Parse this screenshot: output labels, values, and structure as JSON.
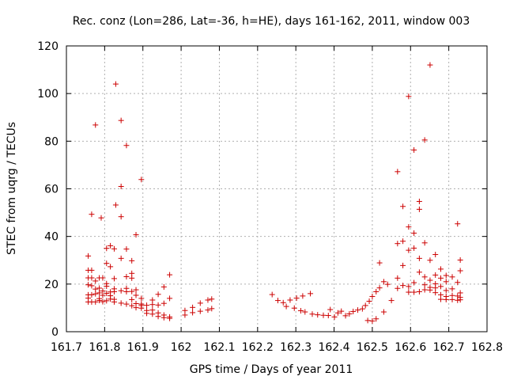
{
  "chart_data": {
    "type": "scatter",
    "title": "Rec. conz (Lon=286, Lat=-36, h=HE), days 161-162, 2011, window 003",
    "xlabel": "GPS time / Days of year 2011",
    "ylabel": "STEC from uqrg / TECUs",
    "xlim": [
      161.7,
      162.8
    ],
    "ylim": [
      0,
      120
    ],
    "x_ticks": [
      "161.7",
      "161.8",
      "161.9",
      "162",
      "162.1",
      "162.2",
      "162.3",
      "162.4",
      "162.5",
      "162.6",
      "162.7",
      "162.8"
    ],
    "y_ticks": [
      "0",
      "20",
      "40",
      "60",
      "80",
      "100",
      "120"
    ],
    "grid": true,
    "marker": "+",
    "color": "#cc0000",
    "points": [
      [
        161.757,
        31.8
      ],
      [
        161.757,
        25.8
      ],
      [
        161.757,
        22.6
      ],
      [
        161.757,
        19.7
      ],
      [
        161.757,
        15.5
      ],
      [
        161.757,
        14.1
      ],
      [
        161.757,
        12.5
      ],
      [
        161.766,
        25.8
      ],
      [
        161.766,
        22.6
      ],
      [
        161.766,
        19.3
      ],
      [
        161.766,
        15.5
      ],
      [
        161.766,
        12.5
      ],
      [
        161.766,
        49.3
      ],
      [
        161.776,
        86.8
      ],
      [
        161.776,
        21.3
      ],
      [
        161.776,
        17.9
      ],
      [
        161.776,
        15.9
      ],
      [
        161.776,
        12.5
      ],
      [
        161.786,
        22.6
      ],
      [
        161.786,
        18.3
      ],
      [
        161.786,
        16.3
      ],
      [
        161.786,
        13.9
      ],
      [
        161.786,
        13.1
      ],
      [
        161.791,
        47.8
      ],
      [
        161.795,
        22.6
      ],
      [
        161.795,
        17.1
      ],
      [
        161.795,
        15.3
      ],
      [
        161.795,
        12.6
      ],
      [
        161.805,
        35.0
      ],
      [
        161.805,
        28.7
      ],
      [
        161.805,
        20.2
      ],
      [
        161.805,
        19.1
      ],
      [
        161.805,
        16.1
      ],
      [
        161.805,
        13.0
      ],
      [
        161.815,
        36.1
      ],
      [
        161.815,
        27.3
      ],
      [
        161.815,
        15.1
      ],
      [
        161.815,
        13.7
      ],
      [
        161.815,
        16.7
      ],
      [
        161.825,
        34.8
      ],
      [
        161.825,
        22.3
      ],
      [
        161.825,
        18.0
      ],
      [
        161.825,
        16.8
      ],
      [
        161.825,
        12.5
      ],
      [
        161.825,
        13.6
      ],
      [
        161.829,
        104.0
      ],
      [
        161.829,
        53.2
      ],
      [
        161.843,
        88.7
      ],
      [
        161.843,
        61.0
      ],
      [
        161.843,
        48.3
      ],
      [
        161.843,
        30.8
      ],
      [
        161.843,
        17.2
      ],
      [
        161.843,
        12.0
      ],
      [
        161.857,
        78.2
      ],
      [
        161.857,
        34.7
      ],
      [
        161.857,
        23.1
      ],
      [
        161.857,
        18.2
      ],
      [
        161.857,
        16.8
      ],
      [
        161.857,
        11.6
      ],
      [
        161.871,
        29.8
      ],
      [
        161.871,
        24.5
      ],
      [
        161.871,
        22.5
      ],
      [
        161.871,
        16.9
      ],
      [
        161.871,
        13.5
      ],
      [
        161.871,
        10.9
      ],
      [
        161.882,
        40.7
      ],
      [
        161.882,
        17.6
      ],
      [
        161.882,
        15.3
      ],
      [
        161.882,
        11.8
      ],
      [
        161.882,
        10.1
      ],
      [
        161.896,
        63.9
      ],
      [
        161.896,
        14.0
      ],
      [
        161.896,
        11.6
      ],
      [
        161.896,
        11.0
      ],
      [
        161.896,
        9.9
      ],
      [
        161.91,
        11.1
      ],
      [
        161.91,
        8.9
      ],
      [
        161.91,
        7.7
      ],
      [
        161.925,
        13.3
      ],
      [
        161.925,
        11.4
      ],
      [
        161.925,
        9.1
      ],
      [
        161.925,
        7.4
      ],
      [
        161.94,
        15.7
      ],
      [
        161.94,
        11.2
      ],
      [
        161.94,
        7.9
      ],
      [
        161.94,
        6.4
      ],
      [
        161.955,
        18.8
      ],
      [
        161.955,
        11.9
      ],
      [
        161.955,
        7.0
      ],
      [
        161.955,
        5.9
      ],
      [
        161.97,
        23.9
      ],
      [
        161.97,
        14.0
      ],
      [
        161.97,
        6.2
      ],
      [
        161.97,
        5.6
      ],
      [
        162.01,
        8.9
      ],
      [
        162.01,
        7.0
      ],
      [
        162.03,
        10.2
      ],
      [
        162.03,
        8.0
      ],
      [
        162.05,
        12.0
      ],
      [
        162.05,
        8.6
      ],
      [
        162.07,
        13.3
      ],
      [
        162.07,
        9.1
      ],
      [
        162.08,
        13.7
      ],
      [
        162.08,
        9.7
      ],
      [
        162.238,
        15.6
      ],
      [
        162.253,
        13.1
      ],
      [
        162.267,
        12.2
      ],
      [
        162.275,
        10.6
      ],
      [
        162.285,
        13.3
      ],
      [
        162.296,
        9.9
      ],
      [
        162.302,
        14.1
      ],
      [
        162.313,
        8.8
      ],
      [
        162.318,
        15.0
      ],
      [
        162.324,
        8.3
      ],
      [
        162.338,
        16.0
      ],
      [
        162.343,
        7.4
      ],
      [
        162.357,
        7.1
      ],
      [
        162.372,
        6.9
      ],
      [
        162.385,
        6.8
      ],
      [
        162.39,
        9.3
      ],
      [
        162.401,
        6.2
      ],
      [
        162.41,
        7.9
      ],
      [
        162.419,
        8.6
      ],
      [
        162.43,
        6.7
      ],
      [
        162.44,
        7.5
      ],
      [
        162.45,
        8.5
      ],
      [
        162.462,
        9.1
      ],
      [
        162.474,
        9.6
      ],
      [
        162.482,
        11.0
      ],
      [
        162.488,
        4.7
      ],
      [
        162.492,
        12.8
      ],
      [
        162.5,
        4.5
      ],
      [
        162.5,
        14.8
      ],
      [
        162.51,
        16.8
      ],
      [
        162.51,
        5.4
      ],
      [
        162.519,
        28.9
      ],
      [
        162.519,
        18.4
      ],
      [
        162.53,
        21.0
      ],
      [
        162.53,
        8.3
      ],
      [
        162.54,
        19.9
      ],
      [
        162.55,
        13.1
      ],
      [
        162.566,
        67.2
      ],
      [
        162.566,
        37.0
      ],
      [
        162.566,
        22.5
      ],
      [
        162.566,
        18.2
      ],
      [
        162.58,
        52.6
      ],
      [
        162.58,
        38.0
      ],
      [
        162.58,
        27.8
      ],
      [
        162.58,
        19.4
      ],
      [
        162.595,
        98.8
      ],
      [
        162.595,
        44.0
      ],
      [
        162.595,
        34.2
      ],
      [
        162.595,
        19.0
      ],
      [
        162.595,
        16.6
      ],
      [
        162.609,
        76.3
      ],
      [
        162.609,
        41.4
      ],
      [
        162.609,
        35.1
      ],
      [
        162.609,
        20.6
      ],
      [
        162.609,
        16.6
      ],
      [
        162.623,
        54.7
      ],
      [
        162.623,
        51.4
      ],
      [
        162.623,
        30.8
      ],
      [
        162.623,
        25.0
      ],
      [
        162.623,
        16.8
      ],
      [
        162.637,
        80.5
      ],
      [
        162.637,
        37.3
      ],
      [
        162.637,
        23.0
      ],
      [
        162.637,
        19.7
      ],
      [
        162.637,
        17.6
      ],
      [
        162.651,
        112.0
      ],
      [
        162.651,
        30.0
      ],
      [
        162.651,
        21.6
      ],
      [
        162.651,
        18.6
      ],
      [
        162.651,
        17.5
      ],
      [
        162.665,
        32.4
      ],
      [
        162.665,
        23.8
      ],
      [
        162.665,
        20.1
      ],
      [
        162.665,
        18.4
      ],
      [
        162.665,
        16.4
      ],
      [
        162.679,
        26.3
      ],
      [
        162.679,
        22.5
      ],
      [
        162.679,
        19.0
      ],
      [
        162.679,
        15.5
      ],
      [
        162.679,
        13.6
      ],
      [
        162.693,
        23.6
      ],
      [
        162.693,
        21.0
      ],
      [
        162.693,
        17.3
      ],
      [
        162.693,
        14.8
      ],
      [
        162.693,
        13.5
      ],
      [
        162.709,
        23.0
      ],
      [
        162.709,
        18.0
      ],
      [
        162.709,
        15.2
      ],
      [
        162.709,
        13.5
      ],
      [
        162.723,
        45.3
      ],
      [
        162.723,
        20.7
      ],
      [
        162.723,
        15.0
      ],
      [
        162.723,
        13.2
      ],
      [
        162.73,
        30.1
      ],
      [
        162.73,
        25.6
      ],
      [
        162.73,
        16.3
      ],
      [
        162.73,
        14.4
      ],
      [
        162.73,
        13.4
      ]
    ]
  }
}
